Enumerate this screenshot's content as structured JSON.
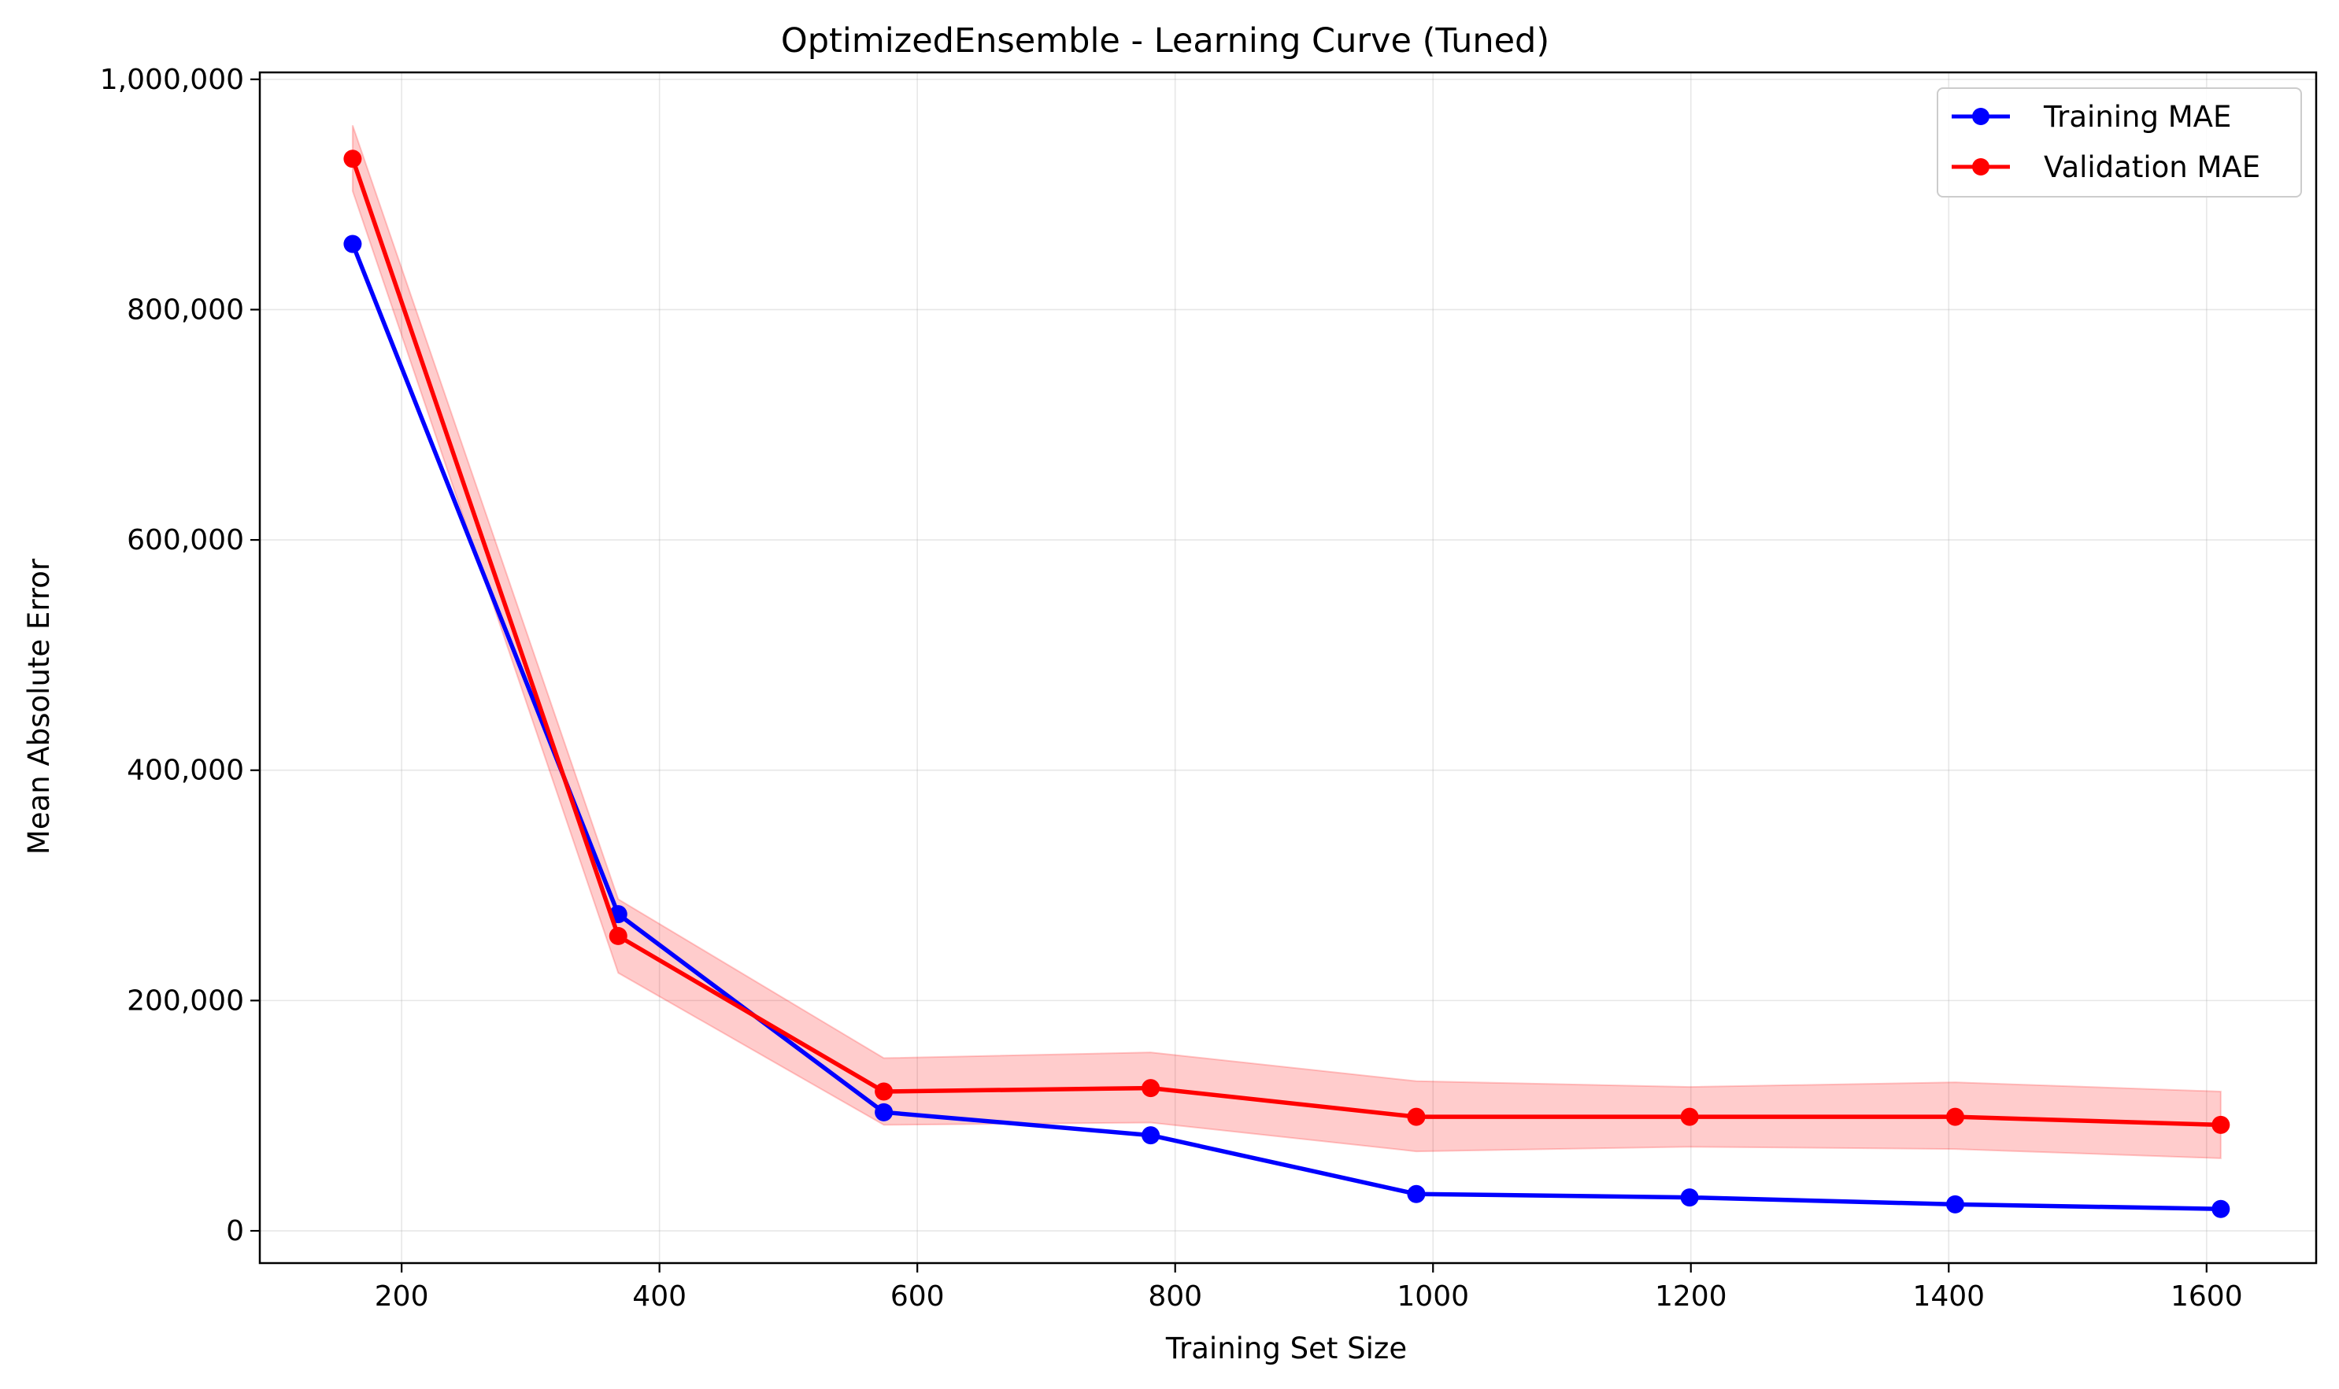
{
  "chart_data": {
    "type": "line",
    "title": "OptimizedEnsemble - Learning Curve (Tuned)",
    "xlabel": "Training Set Size",
    "ylabel": "Mean Absolute Error",
    "xlim": [
      90,
      1685
    ],
    "ylim": [
      -28000,
      1006000
    ],
    "x_ticks": [
      200,
      400,
      600,
      800,
      1000,
      1200,
      1400,
      1600
    ],
    "x_tick_labels": [
      "200",
      "400",
      "600",
      "800",
      "1000",
      "1200",
      "1400",
      "1600"
    ],
    "y_ticks": [
      0,
      200000,
      400000,
      600000,
      800000,
      1000000
    ],
    "y_tick_labels": [
      "0",
      "200,000",
      "400,000",
      "600,000",
      "800,000",
      "1,000,000"
    ],
    "grid": true,
    "legend_position": "top-right",
    "x": [
      162,
      368,
      574,
      781,
      987,
      1199,
      1405,
      1611
    ],
    "series": [
      {
        "name": "Training MAE",
        "color": "#0000ff",
        "values": [
          857000,
          275000,
          103000,
          83000,
          32000,
          29000,
          23000,
          19000
        ]
      },
      {
        "name": "Validation MAE",
        "color": "#ff0000",
        "values": [
          931000,
          256000,
          121000,
          124000,
          99000,
          99000,
          99000,
          92000
        ],
        "band": {
          "lower": [
            903000,
            224000,
            92000,
            94000,
            69000,
            73000,
            71000,
            63000
          ],
          "upper": [
            960000,
            288000,
            150000,
            155000,
            130000,
            125000,
            129000,
            121000
          ]
        }
      }
    ]
  }
}
